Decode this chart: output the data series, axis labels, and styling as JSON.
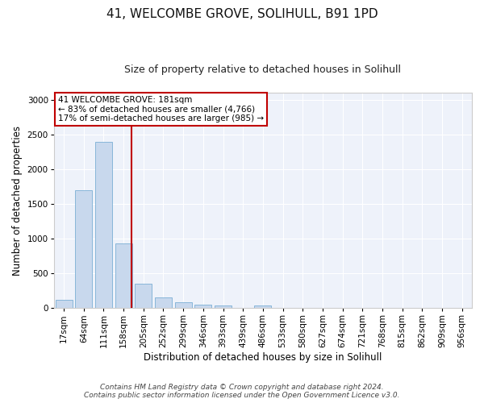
{
  "title_line1": "41, WELCOMBE GROVE, SOLIHULL, B91 1PD",
  "title_line2": "Size of property relative to detached houses in Solihull",
  "xlabel": "Distribution of detached houses by size in Solihull",
  "ylabel": "Number of detached properties",
  "bar_color": "#c8d8ed",
  "bar_edge_color": "#7bafd4",
  "background_color": "#eef2fa",
  "grid_color": "#ffffff",
  "categories": [
    "17sqm",
    "64sqm",
    "111sqm",
    "158sqm",
    "205sqm",
    "252sqm",
    "299sqm",
    "346sqm",
    "393sqm",
    "439sqm",
    "486sqm",
    "533sqm",
    "580sqm",
    "627sqm",
    "674sqm",
    "721sqm",
    "768sqm",
    "815sqm",
    "862sqm",
    "909sqm",
    "956sqm"
  ],
  "values": [
    120,
    1700,
    2390,
    930,
    350,
    150,
    80,
    55,
    35,
    0,
    35,
    0,
    0,
    0,
    0,
    0,
    0,
    0,
    0,
    0,
    0
  ],
  "ylim": [
    0,
    3100
  ],
  "yticks": [
    0,
    500,
    1000,
    1500,
    2000,
    2500,
    3000
  ],
  "vline_x_index": 3.42,
  "vline_color": "#c00000",
  "annotation_text": "41 WELCOMBE GROVE: 181sqm\n← 83% of detached houses are smaller (4,766)\n17% of semi-detached houses are larger (985) →",
  "annotation_box_color": "#ffffff",
  "annotation_box_edge": "#c00000",
  "footer_line1": "Contains HM Land Registry data © Crown copyright and database right 2024.",
  "footer_line2": "Contains public sector information licensed under the Open Government Licence v3.0.",
  "title_fontsize": 11,
  "subtitle_fontsize": 9,
  "tick_fontsize": 7.5,
  "label_fontsize": 8.5,
  "annotation_fontsize": 7.5,
  "footer_fontsize": 6.5
}
